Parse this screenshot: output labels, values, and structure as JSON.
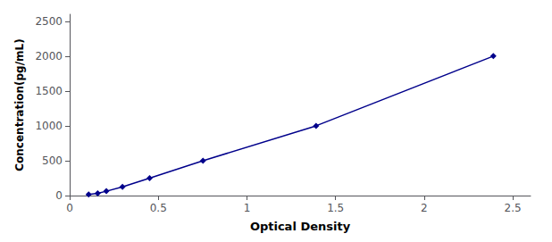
{
  "chart_data": {
    "type": "line",
    "x": [
      0.107,
      0.158,
      0.207,
      0.298,
      0.451,
      0.752,
      1.39,
      2.39
    ],
    "values": [
      15.6,
      31.2,
      62.5,
      125,
      250,
      500,
      1000,
      2000
    ],
    "color": "#00008B",
    "marker": "diamond",
    "xlabel": "Optical Density",
    "ylabel": "Concentration(pg/mL)",
    "xlim": [
      0,
      2.6
    ],
    "ylim": [
      0,
      2600
    ],
    "xticks": [
      0,
      0.5,
      1,
      1.5,
      2,
      2.5
    ],
    "yticks": [
      0,
      500,
      1000,
      1500,
      2000,
      2500
    ],
    "grid": false
  }
}
